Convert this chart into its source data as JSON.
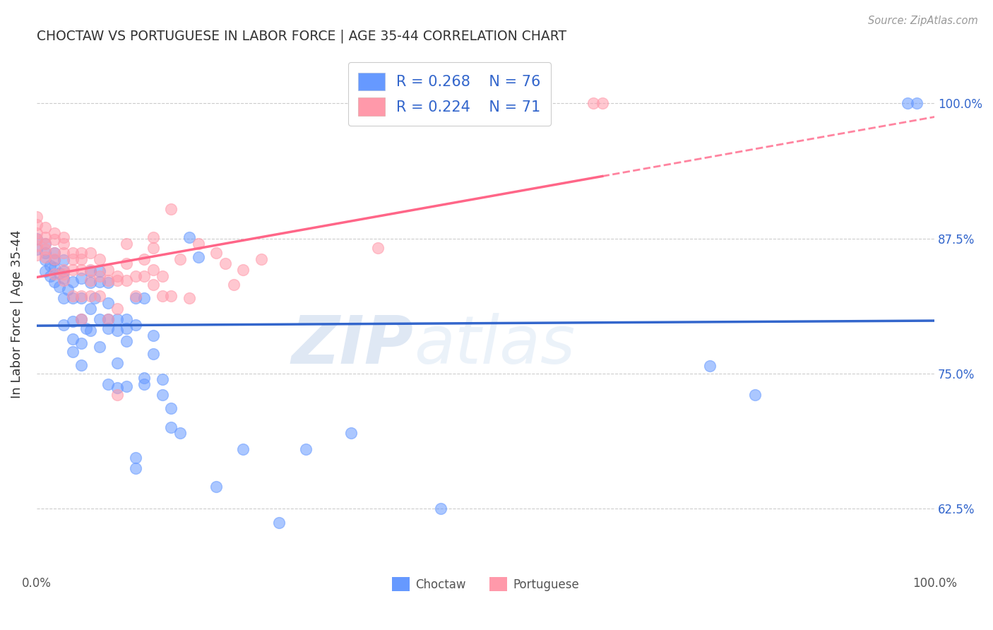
{
  "title": "CHOCTAW VS PORTUGUESE IN LABOR FORCE | AGE 35-44 CORRELATION CHART",
  "source": "Source: ZipAtlas.com",
  "ylabel": "In Labor Force | Age 35-44",
  "ytick_labels": [
    "100.0%",
    "87.5%",
    "75.0%",
    "62.5%"
  ],
  "ytick_values": [
    1.0,
    0.875,
    0.75,
    0.625
  ],
  "xlim": [
    0.0,
    1.0
  ],
  "ylim": [
    0.565,
    1.045
  ],
  "choctaw_color": "#6699ff",
  "portuguese_color": "#ff99aa",
  "regression_blue": "#3366cc",
  "regression_pink": "#ff6688",
  "watermark_zip": "ZIP",
  "watermark_atlas": "atlas",
  "choctaw_points": [
    [
      0.0,
      0.875
    ],
    [
      0.0,
      0.865
    ],
    [
      0.01,
      0.845
    ],
    [
      0.01,
      0.855
    ],
    [
      0.01,
      0.862
    ],
    [
      0.01,
      0.87
    ],
    [
      0.015,
      0.84
    ],
    [
      0.015,
      0.85
    ],
    [
      0.02,
      0.835
    ],
    [
      0.02,
      0.848
    ],
    [
      0.02,
      0.855
    ],
    [
      0.02,
      0.862
    ],
    [
      0.025,
      0.83
    ],
    [
      0.025,
      0.843
    ],
    [
      0.03,
      0.795
    ],
    [
      0.03,
      0.82
    ],
    [
      0.03,
      0.838
    ],
    [
      0.03,
      0.845
    ],
    [
      0.03,
      0.855
    ],
    [
      0.035,
      0.828
    ],
    [
      0.04,
      0.77
    ],
    [
      0.04,
      0.782
    ],
    [
      0.04,
      0.798
    ],
    [
      0.04,
      0.82
    ],
    [
      0.04,
      0.835
    ],
    [
      0.05,
      0.758
    ],
    [
      0.05,
      0.778
    ],
    [
      0.05,
      0.8
    ],
    [
      0.05,
      0.82
    ],
    [
      0.05,
      0.838
    ],
    [
      0.055,
      0.792
    ],
    [
      0.06,
      0.79
    ],
    [
      0.06,
      0.81
    ],
    [
      0.06,
      0.834
    ],
    [
      0.06,
      0.845
    ],
    [
      0.065,
      0.82
    ],
    [
      0.07,
      0.775
    ],
    [
      0.07,
      0.8
    ],
    [
      0.07,
      0.835
    ],
    [
      0.07,
      0.845
    ],
    [
      0.08,
      0.74
    ],
    [
      0.08,
      0.792
    ],
    [
      0.08,
      0.8
    ],
    [
      0.08,
      0.815
    ],
    [
      0.08,
      0.834
    ],
    [
      0.09,
      0.737
    ],
    [
      0.09,
      0.76
    ],
    [
      0.09,
      0.79
    ],
    [
      0.09,
      0.8
    ],
    [
      0.1,
      0.738
    ],
    [
      0.1,
      0.78
    ],
    [
      0.1,
      0.792
    ],
    [
      0.1,
      0.8
    ],
    [
      0.11,
      0.662
    ],
    [
      0.11,
      0.672
    ],
    [
      0.11,
      0.795
    ],
    [
      0.11,
      0.82
    ],
    [
      0.12,
      0.74
    ],
    [
      0.12,
      0.746
    ],
    [
      0.12,
      0.82
    ],
    [
      0.13,
      0.768
    ],
    [
      0.13,
      0.785
    ],
    [
      0.14,
      0.73
    ],
    [
      0.14,
      0.745
    ],
    [
      0.15,
      0.7
    ],
    [
      0.15,
      0.718
    ],
    [
      0.16,
      0.695
    ],
    [
      0.17,
      0.876
    ],
    [
      0.18,
      0.858
    ],
    [
      0.2,
      0.645
    ],
    [
      0.23,
      0.68
    ],
    [
      0.27,
      0.612
    ],
    [
      0.3,
      0.68
    ],
    [
      0.35,
      0.695
    ],
    [
      0.45,
      0.625
    ],
    [
      0.75,
      0.757
    ],
    [
      0.8,
      0.73
    ],
    [
      0.97,
      1.0
    ],
    [
      0.98,
      1.0
    ]
  ],
  "portuguese_points": [
    [
      0.0,
      0.86
    ],
    [
      0.0,
      0.868
    ],
    [
      0.0,
      0.874
    ],
    [
      0.0,
      0.88
    ],
    [
      0.0,
      0.888
    ],
    [
      0.0,
      0.895
    ],
    [
      0.01,
      0.858
    ],
    [
      0.01,
      0.865
    ],
    [
      0.01,
      0.87
    ],
    [
      0.01,
      0.876
    ],
    [
      0.01,
      0.885
    ],
    [
      0.02,
      0.842
    ],
    [
      0.02,
      0.856
    ],
    [
      0.02,
      0.862
    ],
    [
      0.02,
      0.874
    ],
    [
      0.02,
      0.88
    ],
    [
      0.03,
      0.836
    ],
    [
      0.03,
      0.842
    ],
    [
      0.03,
      0.846
    ],
    [
      0.03,
      0.862
    ],
    [
      0.03,
      0.87
    ],
    [
      0.03,
      0.876
    ],
    [
      0.04,
      0.822
    ],
    [
      0.04,
      0.846
    ],
    [
      0.04,
      0.856
    ],
    [
      0.04,
      0.862
    ],
    [
      0.05,
      0.8
    ],
    [
      0.05,
      0.822
    ],
    [
      0.05,
      0.846
    ],
    [
      0.05,
      0.856
    ],
    [
      0.05,
      0.862
    ],
    [
      0.06,
      0.822
    ],
    [
      0.06,
      0.836
    ],
    [
      0.06,
      0.846
    ],
    [
      0.06,
      0.862
    ],
    [
      0.07,
      0.822
    ],
    [
      0.07,
      0.84
    ],
    [
      0.07,
      0.856
    ],
    [
      0.08,
      0.8
    ],
    [
      0.08,
      0.836
    ],
    [
      0.08,
      0.846
    ],
    [
      0.09,
      0.81
    ],
    [
      0.09,
      0.836
    ],
    [
      0.09,
      0.84
    ],
    [
      0.09,
      0.73
    ],
    [
      0.1,
      0.836
    ],
    [
      0.1,
      0.852
    ],
    [
      0.1,
      0.87
    ],
    [
      0.11,
      0.822
    ],
    [
      0.11,
      0.84
    ],
    [
      0.12,
      0.84
    ],
    [
      0.12,
      0.856
    ],
    [
      0.13,
      0.832
    ],
    [
      0.13,
      0.846
    ],
    [
      0.13,
      0.866
    ],
    [
      0.13,
      0.876
    ],
    [
      0.14,
      0.822
    ],
    [
      0.14,
      0.84
    ],
    [
      0.15,
      0.902
    ],
    [
      0.15,
      0.822
    ],
    [
      0.16,
      0.856
    ],
    [
      0.17,
      0.82
    ],
    [
      0.18,
      0.87
    ],
    [
      0.2,
      0.862
    ],
    [
      0.21,
      0.852
    ],
    [
      0.22,
      0.832
    ],
    [
      0.23,
      0.846
    ],
    [
      0.25,
      0.856
    ],
    [
      0.38,
      0.866
    ],
    [
      0.62,
      1.0
    ],
    [
      0.63,
      1.0
    ]
  ]
}
